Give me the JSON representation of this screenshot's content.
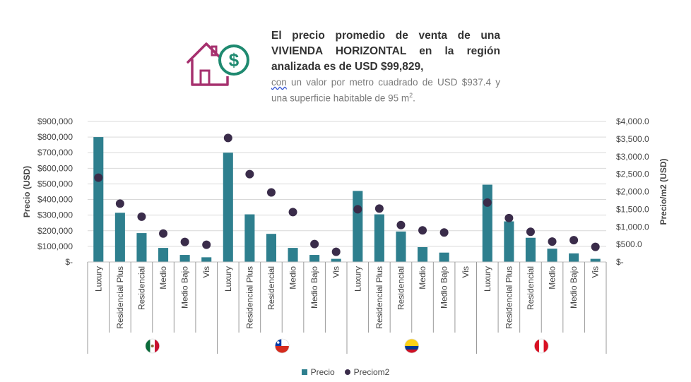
{
  "header": {
    "headline": "El precio promedio de venta de una VIVIENDA HORIZONTAL en la región analizada es de USD $99,829,",
    "subline_lead": "con",
    "subline_rest": " un valor por metro cuadrado de USD $937.4 y una superficie habitable de 95 m",
    "subline_sup": "2",
    "subline_end": ".",
    "icon": "house-dollar-icon",
    "icon_color_house": "#a6306e",
    "icon_color_coin": "#1f8a70"
  },
  "chart_data": {
    "type": "bar",
    "categories": [
      "Luxury",
      "Residencial Plus",
      "Residencial",
      "Medio",
      "Medio Bajo",
      "Vis",
      "Luxury",
      "Residencial Plus",
      "Residencial",
      "Medio",
      "Medio Bajo",
      "Vis",
      "Luxury",
      "Residencial Plus",
      "Residencial",
      "Medio",
      "Medio Bajo",
      "Vis",
      "Luxury",
      "Residencial Plus",
      "Residencial",
      "Medio",
      "Medio Bajo",
      "Vis"
    ],
    "groups": [
      {
        "flag": "mexico-flag-icon",
        "count": 6
      },
      {
        "flag": "chile-flag-icon",
        "count": 6
      },
      {
        "flag": "colombia-flag-icon",
        "count": 6
      },
      {
        "flag": "peru-flag-icon",
        "count": 6
      }
    ],
    "series": [
      {
        "name": "Precio",
        "type": "bar",
        "axis": "left",
        "color": "#2e7f8e",
        "values": [
          800000,
          315000,
          185000,
          90000,
          45000,
          30000,
          700000,
          305000,
          180000,
          90000,
          45000,
          20000,
          455000,
          305000,
          195000,
          95000,
          60000,
          null,
          495000,
          260000,
          155000,
          85000,
          55000,
          20000
        ]
      },
      {
        "name": "Preciom2",
        "type": "scatter",
        "axis": "right",
        "color": "#3a2c4a",
        "values": [
          2400,
          1660,
          1290,
          810,
          570,
          490,
          3530,
          2500,
          1980,
          1420,
          510,
          290,
          1500,
          1520,
          1050,
          900,
          840,
          null,
          1690,
          1250,
          860,
          580,
          620,
          430
        ]
      }
    ],
    "ylabel": "Precio (USD)",
    "y2label": "Precio/m2 (USD)",
    "ylim": [
      0,
      900000
    ],
    "y2lim": [
      0,
      4000
    ],
    "yticks": [
      "$-",
      "$100,000",
      "$200,000",
      "$300,000",
      "$400,000",
      "$500,000",
      "$600,000",
      "$700,000",
      "$800,000",
      "$900,000"
    ],
    "y2ticks": [
      "$-",
      "$500.0",
      "$1,000.0",
      "$1,500.0",
      "$2,000.0",
      "$2,500.0",
      "$3,000.0",
      "$3,500.0",
      "$4,000.0"
    ],
    "grid": true,
    "legend": "bottom"
  }
}
